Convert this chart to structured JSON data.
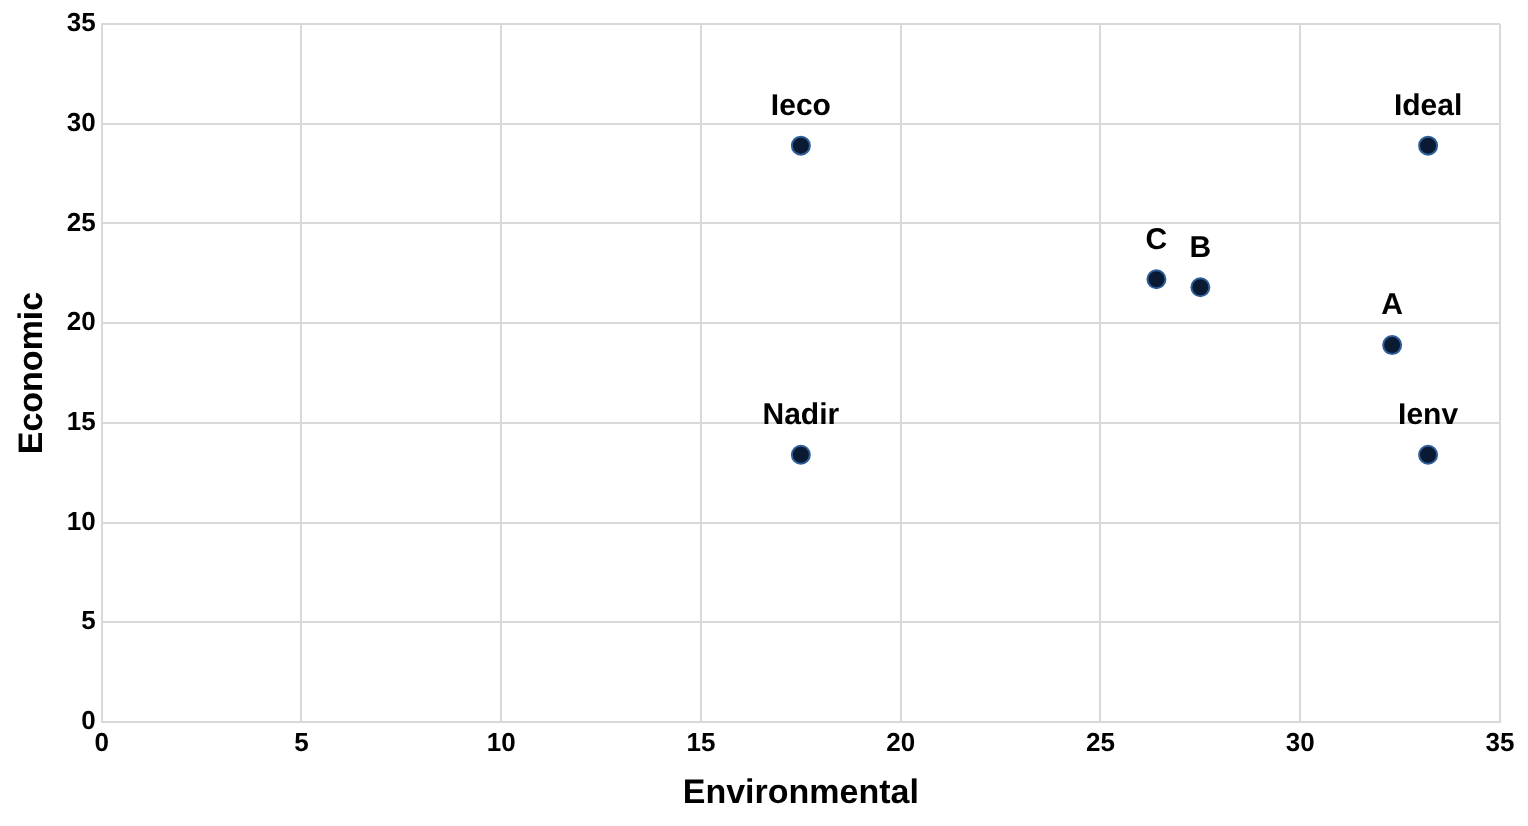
{
  "chart_data": {
    "type": "scatter",
    "xlabel": "Environmental",
    "ylabel": "Economic",
    "x": [
      17.5,
      33.2,
      26.4,
      27.5,
      32.3,
      17.5,
      33.2
    ],
    "values": [
      28.9,
      28.9,
      22.2,
      21.8,
      18.9,
      13.4,
      13.4
    ],
    "color": "#0b1a33",
    "marker": "circle",
    "xlim": [
      0,
      35
    ],
    "xticks": [
      0,
      5,
      10,
      15,
      20,
      25,
      30,
      35
    ],
    "ylim": [
      0,
      35
    ],
    "yticks": [
      0,
      5,
      10,
      15,
      20,
      25,
      30,
      35
    ],
    "grid": true,
    "legend": false,
    "annotations": [
      {
        "text": "Ieco",
        "x": 17.5,
        "y": 28.9
      },
      {
        "text": "Ideal",
        "x": 33.2,
        "y": 28.9
      },
      {
        "text": "C",
        "x": 26.4,
        "y": 22.2
      },
      {
        "text": "B",
        "x": 27.5,
        "y": 21.8
      },
      {
        "text": "A",
        "x": 32.3,
        "y": 18.9
      },
      {
        "text": "Nadir",
        "x": 17.5,
        "y": 13.4
      },
      {
        "text": "Ienv",
        "x": 33.2,
        "y": 13.4
      }
    ]
  }
}
